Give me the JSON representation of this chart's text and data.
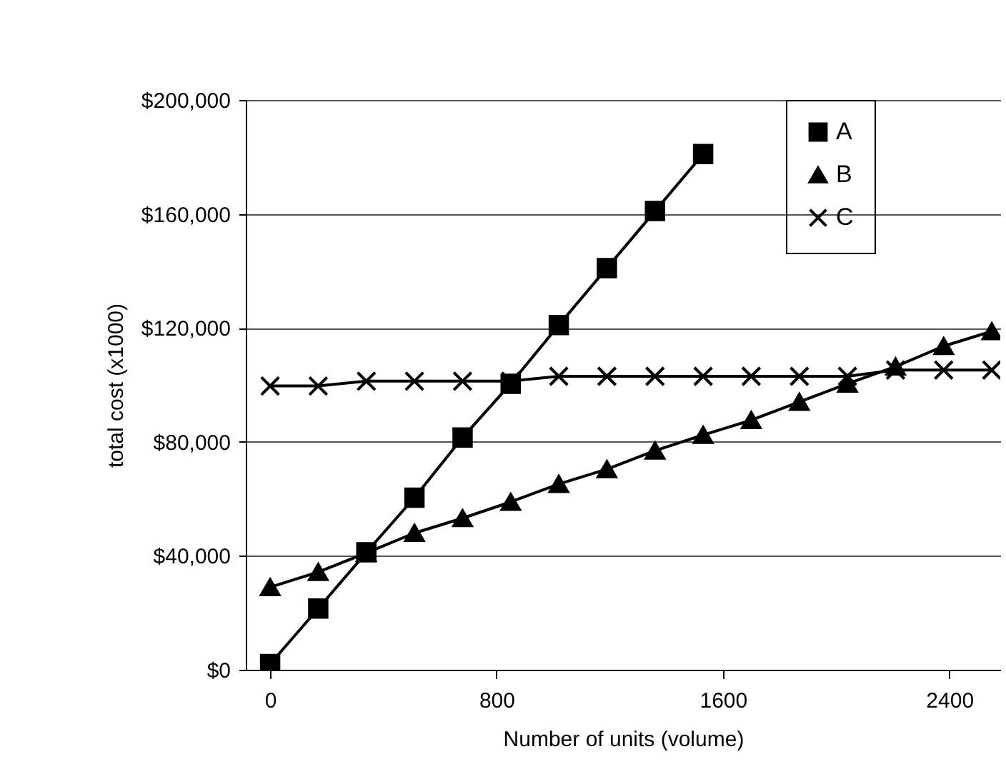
{
  "chart_data": {
    "type": "line",
    "xlabel": "Number of units (volume)",
    "ylabel": "total cost (x1000)",
    "x": [
      0,
      170,
      340,
      510,
      680,
      850,
      1020,
      1190,
      1360,
      1530,
      1700,
      1870,
      2040,
      2210,
      2380,
      2550
    ],
    "xlim": [
      -86,
      2580
    ],
    "xticks": [
      0,
      800,
      1600,
      2400
    ],
    "ylim": [
      0,
      200000
    ],
    "yticks": [
      {
        "value": 0,
        "label": "$0"
      },
      {
        "value": 40000,
        "label": "$40,000"
      },
      {
        "value": 80000,
        "label": "$80,000"
      },
      {
        "value": 120000,
        "label": "$120,000"
      },
      {
        "value": 160000,
        "label": "$160,000"
      },
      {
        "value": 200000,
        "label": "$200,000"
      }
    ],
    "grid": "y",
    "legend": "top right",
    "series": [
      {
        "name": "A",
        "color": "#000000",
        "marker": "square",
        "values": [
          2000,
          21500,
          41200,
          60400,
          81500,
          100400,
          121000,
          141000,
          161000,
          181000,
          null,
          null,
          null,
          null,
          null,
          null
        ]
      },
      {
        "name": "B",
        "color": "#000000",
        "marker": "triangle",
        "values": [
          29000,
          34300,
          41000,
          48000,
          53200,
          58900,
          65200,
          70400,
          76900,
          82400,
          87600,
          94000,
          100400,
          106400,
          113600,
          118800
        ]
      },
      {
        "name": "C",
        "color": "#000000",
        "marker": "cross",
        "values": [
          99600,
          99600,
          101300,
          101300,
          101300,
          101300,
          103000,
          103000,
          103000,
          103000,
          103000,
          103000,
          103000,
          105200,
          105200,
          105200
        ]
      }
    ]
  }
}
